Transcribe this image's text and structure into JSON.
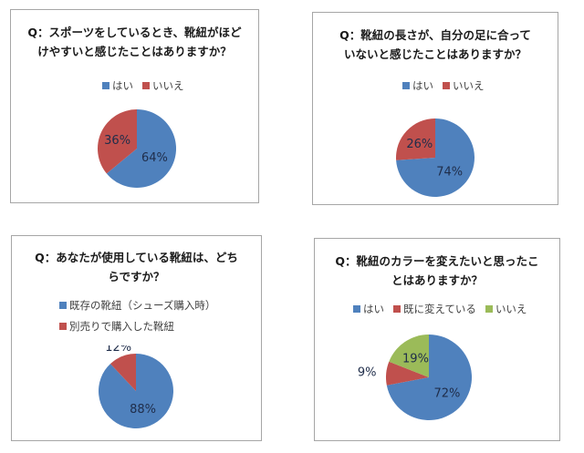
{
  "colors": {
    "blue": "#4f81bd",
    "red": "#c0504d",
    "green": "#9bbb59"
  },
  "charts": [
    {
      "title_line1": "Q：スポーツをしているとき、靴紐がほど",
      "title_line2": "けやすいと感じたことはありますか？",
      "legend": [
        "はい",
        "いいえ"
      ],
      "labels": [
        "64%",
        "36%"
      ]
    },
    {
      "title_line1": "Q：靴紐の長さが、自分の足に合って",
      "title_line2": "いないと感じたことはありますか？",
      "legend": [
        "はい",
        "いいえ"
      ],
      "labels": [
        "74%",
        "26%"
      ]
    },
    {
      "title_line1": "Q：あなたが使用している靴紐は、どち",
      "title_line2": "らですか？",
      "legend": [
        "既存の靴紐（シューズ購入時）",
        "別売りで購入した靴紐"
      ],
      "labels": [
        "88%",
        "12%"
      ]
    },
    {
      "title_line1": "Q：靴紐のカラーを変えたいと思ったこ",
      "title_line2": "とはありますか？",
      "legend": [
        "はい",
        "既に変えている",
        "いいえ"
      ],
      "labels": [
        "72%",
        "9%",
        "19%"
      ]
    }
  ],
  "chart_data": [
    {
      "type": "pie",
      "title": "Q：スポーツをしているとき、靴紐がほどけやすいと感じたことはありますか？",
      "categories": [
        "はい",
        "いいえ"
      ],
      "values": [
        64,
        36
      ],
      "legend_position": "top"
    },
    {
      "type": "pie",
      "title": "Q：靴紐の長さが、自分の足に合っていないと感じたことはありますか？",
      "categories": [
        "はい",
        "いいえ"
      ],
      "values": [
        74,
        26
      ],
      "legend_position": "top"
    },
    {
      "type": "pie",
      "title": "Q：あなたが使用している靴紐は、どちらですか？",
      "categories": [
        "既存の靴紐（シューズ購入時）",
        "別売りで購入した靴紐"
      ],
      "values": [
        88,
        12
      ],
      "legend_position": "top"
    },
    {
      "type": "pie",
      "title": "Q：靴紐のカラーを変えたいと思ったことはありますか？",
      "categories": [
        "はい",
        "既に変えている",
        "いいえ"
      ],
      "values": [
        72,
        9,
        19
      ],
      "legend_position": "top"
    }
  ]
}
